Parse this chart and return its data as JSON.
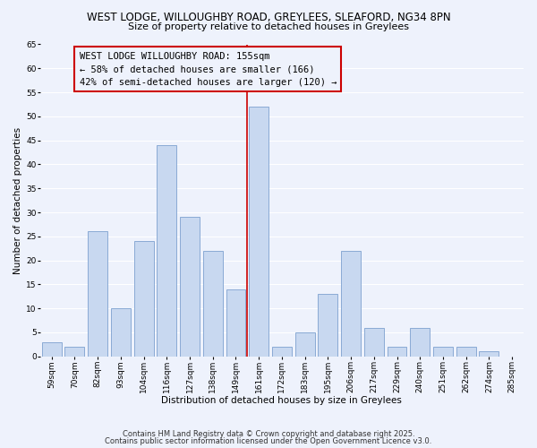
{
  "title": "WEST LODGE, WILLOUGHBY ROAD, GREYLEES, SLEAFORD, NG34 8PN",
  "subtitle": "Size of property relative to detached houses in Greylees",
  "xlabel": "Distribution of detached houses by size in Greylees",
  "ylabel": "Number of detached properties",
  "bar_color": "#c8d8f0",
  "bar_edge_color": "#8aaad4",
  "categories": [
    "59sqm",
    "70sqm",
    "82sqm",
    "93sqm",
    "104sqm",
    "116sqm",
    "127sqm",
    "138sqm",
    "149sqm",
    "161sqm",
    "172sqm",
    "183sqm",
    "195sqm",
    "206sqm",
    "217sqm",
    "229sqm",
    "240sqm",
    "251sqm",
    "262sqm",
    "274sqm",
    "285sqm"
  ],
  "values": [
    3,
    2,
    26,
    10,
    24,
    44,
    29,
    22,
    14,
    52,
    2,
    5,
    13,
    22,
    6,
    2,
    6,
    2,
    2,
    1,
    0
  ],
  "ylim": [
    0,
    65
  ],
  "yticks": [
    0,
    5,
    10,
    15,
    20,
    25,
    30,
    35,
    40,
    45,
    50,
    55,
    60,
    65
  ],
  "vline_color": "#cc0000",
  "annotation_title": "WEST LODGE WILLOUGHBY ROAD: 155sqm",
  "annotation_line1": "← 58% of detached houses are smaller (166)",
  "annotation_line2": "42% of semi-detached houses are larger (120) →",
  "annotation_box_edge": "#cc0000",
  "footer1": "Contains HM Land Registry data © Crown copyright and database right 2025.",
  "footer2": "Contains public sector information licensed under the Open Government Licence v3.0.",
  "bg_color": "#eef2fc",
  "grid_color": "#ffffff",
  "title_fontsize": 8.5,
  "subtitle_fontsize": 8.0,
  "axis_label_fontsize": 7.5,
  "tick_fontsize": 6.5,
  "annotation_fontsize": 7.5,
  "footer_fontsize": 6.0
}
